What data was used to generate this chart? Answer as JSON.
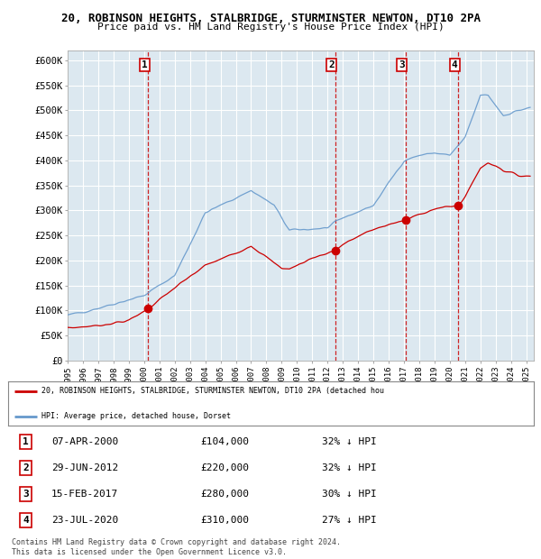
{
  "title1": "20, ROBINSON HEIGHTS, STALBRIDGE, STURMINSTER NEWTON, DT10 2PA",
  "title2": "Price paid vs. HM Land Registry's House Price Index (HPI)",
  "chart_bg": "#dce8f0",
  "grid_color": "#ffffff",
  "legend_line1": "20, ROBINSON HEIGHTS, STALBRIDGE, STURMINSTER NEWTON, DT10 2PA (detached hou",
  "legend_line2": "HPI: Average price, detached house, Dorset",
  "legend_color1": "#cc0000",
  "legend_color2": "#6699cc",
  "footer": "Contains HM Land Registry data © Crown copyright and database right 2024.\nThis data is licensed under the Open Government Licence v3.0.",
  "transactions": [
    {
      "num": 1,
      "date": "07-APR-2000",
      "price": "£104,000",
      "pct": "32% ↓ HPI",
      "x_year": 2000.27,
      "y_price": 104000
    },
    {
      "num": 2,
      "date": "29-JUN-2012",
      "price": "£220,000",
      "pct": "32% ↓ HPI",
      "x_year": 2012.49,
      "y_price": 220000
    },
    {
      "num": 3,
      "date": "15-FEB-2017",
      "price": "£280,000",
      "pct": "30% ↓ HPI",
      "x_year": 2017.12,
      "y_price": 280000
    },
    {
      "num": 4,
      "date": "23-JUL-2020",
      "price": "£310,000",
      "pct": "27% ↓ HPI",
      "x_year": 2020.56,
      "y_price": 310000
    }
  ],
  "yticks": [
    0,
    50000,
    100000,
    150000,
    200000,
    250000,
    300000,
    350000,
    400000,
    450000,
    500000,
    550000,
    600000
  ],
  "xlim": [
    1995,
    2025.5
  ],
  "ylim": [
    0,
    620000
  ]
}
